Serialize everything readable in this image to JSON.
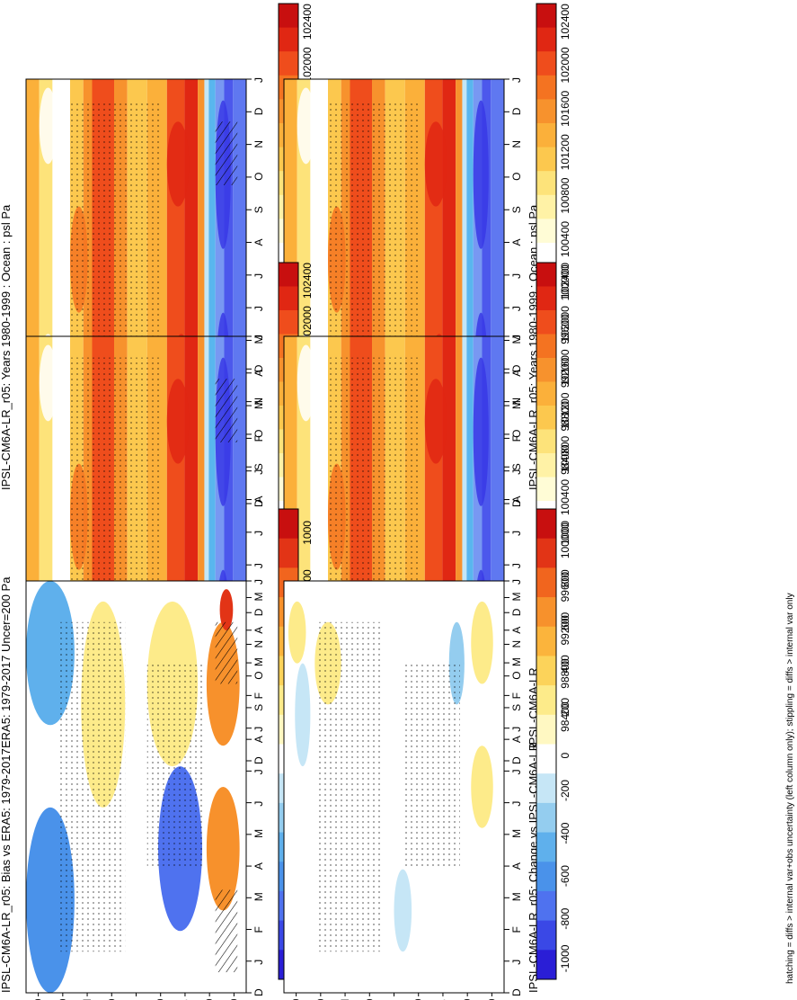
{
  "footer_note": "hatching = diffs > internal var+obs uncertainty (left column only); stippling = diffs > internal var only",
  "colors": {
    "abs_palette": [
      "#2a1ed6",
      "#3838e6",
      "#4c58ec",
      "#5f78f0",
      "#7898f2",
      "#8ab0f4",
      "#59b6ee",
      "#89ceef",
      "#c3e6f6",
      "#ffffff",
      "#fffcd6",
      "#fff2a6",
      "#fde37a",
      "#fcc84e",
      "#fbb03a",
      "#f7922d",
      "#f47321",
      "#ef4d1c",
      "#e02713",
      "#c80f0f"
    ],
    "diff_palette": [
      "#2a1ed6",
      "#3a48e6",
      "#4f72ef",
      "#4a92ea",
      "#5fb0ec",
      "#94cdef",
      "#c6e6f6",
      "#ffffff",
      "#fff8c2",
      "#fdeb8a",
      "#fcd35a",
      "#fbb43c",
      "#f7912c",
      "#f1651e",
      "#e23416",
      "#c80f0f"
    ]
  },
  "chart_data": [
    {
      "type": "heatmap",
      "title": "IPSL-CM6A-LR_r05: Years 1980-1999 : Ocean : psl Pa",
      "x_ticks": [
        "D",
        "J",
        "F",
        "M",
        "A",
        "M",
        "J",
        "J",
        "A",
        "S",
        "O",
        "N",
        "D",
        "J"
      ],
      "y_ticks": [
        "80",
        "60",
        "°N",
        "20",
        "0",
        "20",
        "°S",
        "60",
        "80"
      ],
      "colorbar_labels": [
        "102400",
        "102000",
        "101600",
        "101200",
        "100800",
        "100400",
        "100000",
        "99600",
        "99200",
        "98800",
        "98400"
      ],
      "units": "Pa",
      "stippling": true,
      "hatching": true
    },
    {
      "type": "heatmap",
      "title": "IPSL-CM6A-LR_r05: Years 1980-1999 : Ocean : psl Pa",
      "x_ticks": [
        "D",
        "J",
        "F",
        "M",
        "A",
        "M",
        "J",
        "J",
        "A",
        "S",
        "O",
        "N",
        "D",
        "J"
      ],
      "y_ticks": [
        "80",
        "60",
        "°N",
        "20",
        "0",
        "20",
        "°S",
        "60",
        "80"
      ],
      "colorbar_labels": [
        "102400",
        "102000",
        "101600",
        "101200",
        "100800",
        "100400",
        "100000",
        "99600",
        "99200",
        "98800",
        "98400"
      ],
      "units": "Pa",
      "stippling": true,
      "hatching": false
    },
    {
      "type": "heatmap",
      "title": "ERA5: 1979-2017 Uncer=200 Pa",
      "x_ticks": [
        "D",
        "J",
        "F",
        "M",
        "A",
        "M",
        "J",
        "J",
        "A",
        "S",
        "O",
        "N",
        "D",
        "J"
      ],
      "y_ticks": [
        "80",
        "60",
        "°N",
        "20",
        "0",
        "20",
        "°S",
        "60",
        "80"
      ],
      "colorbar_labels": [
        "102400",
        "102000",
        "101600",
        "101200",
        "100800",
        "100400",
        "100000",
        "99600",
        "99200",
        "98800",
        "98400"
      ],
      "units": "Pa",
      "stippling": true,
      "hatching": true
    },
    {
      "type": "heatmap",
      "title": "IPSL-CM6A-LR",
      "x_ticks": [
        "D",
        "J",
        "F",
        "M",
        "A",
        "M",
        "J",
        "J",
        "A",
        "S",
        "O",
        "N",
        "D",
        "J"
      ],
      "y_ticks": [
        "80",
        "60",
        "°N",
        "20",
        "0",
        "20",
        "°S",
        "60",
        "80"
      ],
      "colorbar_labels": [
        "102400",
        "102000",
        "101600",
        "101200",
        "100800",
        "100400",
        "100000",
        "99600",
        "99200",
        "98800",
        "98400"
      ],
      "units": "Pa",
      "stippling": true,
      "hatching": false
    },
    {
      "type": "heatmap",
      "title": "IPSL-CM6A-LR_r05: Bias vs ERA5: 1979-2017",
      "x_ticks": [
        "D",
        "J",
        "F",
        "M",
        "A",
        "M",
        "J",
        "J",
        "A",
        "S",
        "O",
        "N",
        "D",
        "J"
      ],
      "y_ticks": [
        "80",
        "60",
        "°N",
        "20",
        "0",
        "20",
        "°S",
        "60",
        "80"
      ],
      "colorbar_labels": [
        "1000",
        "800",
        "600",
        "400",
        "200",
        "0",
        "-200",
        "-400",
        "-600",
        "-800",
        "-1000"
      ],
      "units": "Pa",
      "stippling": true,
      "hatching": true
    },
    {
      "type": "heatmap",
      "title": "IPSL-CM6A-LR_r05: Change vs IPSL-CM6A-LR",
      "x_ticks": [
        "D",
        "J",
        "F",
        "M",
        "A",
        "M",
        "J",
        "J",
        "A",
        "S",
        "O",
        "N",
        "D",
        "J"
      ],
      "y_ticks": [
        "80",
        "60",
        "°N",
        "20",
        "0",
        "20",
        "°S",
        "60",
        "80"
      ],
      "colorbar_labels": [
        "1000",
        "800",
        "600",
        "400",
        "200",
        "0",
        "-200",
        "-400",
        "-600",
        "-800",
        "-1000"
      ],
      "units": "Pa",
      "stippling": true,
      "hatching": false
    }
  ]
}
